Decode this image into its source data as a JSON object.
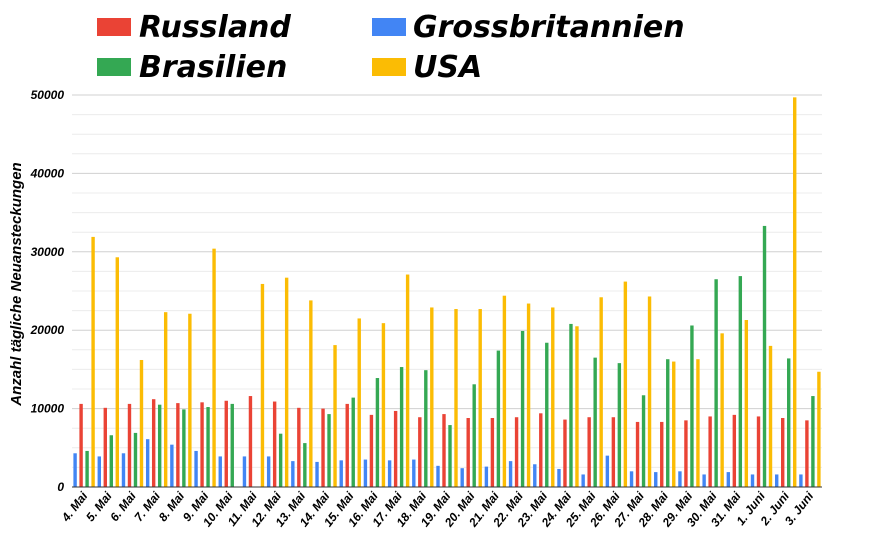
{
  "chart_data": {
    "type": "bar",
    "ylabel": "Anzahl tägliche Neuansteckungen",
    "xlabel": "",
    "ylim": [
      0,
      50000
    ],
    "yticks": [
      "0",
      "10000",
      "20000",
      "30000",
      "40000",
      "50000"
    ],
    "grid": true,
    "legend_position": "top",
    "categories": [
      "4. Mai",
      "5. Mai",
      "6. Mai",
      "7. Mai",
      "8. Mai",
      "9. Mai",
      "10. Mai",
      "11. Mai",
      "12. Mai",
      "13. Mai",
      "14. Mai",
      "15. Mai",
      "16. Mai",
      "17. Mai",
      "18. Mai",
      "19. Mai",
      "20. Mai",
      "21. Mai",
      "22. Mai",
      "23. Mai",
      "24. Mai",
      "25. Mai",
      "26. Mai",
      "27. Mai",
      "28. Mai",
      "29. Mai",
      "30. Mai",
      "31. Mai",
      "1. Juni",
      "2. Juni",
      "3. Juni"
    ],
    "series": [
      {
        "name": "Grossbritannien",
        "color": "#4285f4",
        "values": [
          4300,
          3900,
          4300,
          6100,
          5400,
          4600,
          3900,
          3900,
          3900,
          3300,
          3200,
          3400,
          3500,
          3400,
          3500,
          2700,
          2400,
          2600,
          3300,
          2900,
          2300,
          1600,
          4000,
          2000,
          1900,
          2000,
          1600,
          1900,
          1600,
          1600,
          1600
        ]
      },
      {
        "name": "Russland",
        "color": "#ea4335",
        "values": [
          10600,
          10100,
          10600,
          11200,
          10700,
          10800,
          11000,
          11600,
          10900,
          10100,
          10000,
          10600,
          9200,
          9700,
          8900,
          9300,
          8800,
          8800,
          8900,
          9400,
          8600,
          8900,
          8900,
          8300,
          8300,
          8500,
          9000,
          9200,
          9000,
          8800,
          8500
        ]
      },
      {
        "name": "Brasilien",
        "color": "#34a853",
        "values": [
          4600,
          6600,
          6900,
          10500,
          9900,
          10200,
          10600,
          0,
          6800,
          5600,
          9300,
          11400,
          13900,
          15300,
          14900,
          7900,
          13100,
          17400,
          19900,
          18400,
          20800,
          16500,
          15800,
          11700,
          16300,
          20600,
          26500,
          26900,
          33300,
          16400,
          11600
        ]
      },
      {
        "name": "USA",
        "color": "#fbbc04",
        "values": [
          31900,
          29300,
          16200,
          22300,
          22100,
          30400,
          0,
          25900,
          26700,
          23800,
          18100,
          21500,
          20900,
          27100,
          22900,
          22700,
          22700,
          24400,
          23400,
          22900,
          20500,
          24200,
          26200,
          24300,
          16000,
          16300,
          19600,
          21300,
          18000,
          49700,
          14700
        ]
      }
    ]
  },
  "legend": [
    {
      "label": "Russland",
      "color": "#ea4335"
    },
    {
      "label": "Brasilien",
      "color": "#34a853"
    },
    {
      "label": "Grossbritannien",
      "color": "#4285f4"
    },
    {
      "label": "USA",
      "color": "#fbbc04"
    }
  ]
}
